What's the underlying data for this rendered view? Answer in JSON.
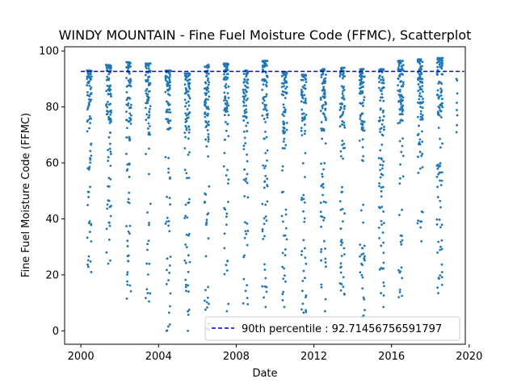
{
  "chart_data": {
    "type": "scatter",
    "title": "WINDY MOUNTAIN - Fine Fuel Moisture Code (FFMC), Scatterplot",
    "xlabel": "Date",
    "ylabel": "Fine Fuel Moisture Code (FFMC)",
    "xlim": [
      "1999-03-01",
      "2019-10-20"
    ],
    "ylim": [
      -4.8,
      101.5
    ],
    "xticks": [
      "2000",
      "2004",
      "2008",
      "2012",
      "2016",
      "2020"
    ],
    "yticks": [
      0,
      20,
      40,
      60,
      80,
      100
    ],
    "grid": false,
    "legend_position": "lower-right",
    "colors": {
      "points": "#1f77b4",
      "percentile_line": "#0000cc",
      "axes": "#000000"
    },
    "percentile_line": {
      "label": "90th percentile : 92.71456756591797",
      "y": 92.71456756591797,
      "x_range": [
        "2000-01-01",
        "2019-09-30"
      ],
      "style": "dashed"
    },
    "series": [
      {
        "seasons": [
          {
            "year": 2000,
            "start": "2000-04-25",
            "end": "2000-07-20",
            "min": 21.0,
            "max": 93.0,
            "n": 85
          },
          {
            "year": 2001,
            "start": "2001-04-20",
            "end": "2001-07-25",
            "min": 24.0,
            "max": 95.0,
            "n": 100
          },
          {
            "year": 2002,
            "start": "2002-05-05",
            "end": "2002-08-05",
            "min": 11.5,
            "max": 96.0,
            "n": 95
          },
          {
            "year": 2003,
            "start": "2003-05-01",
            "end": "2003-08-05",
            "min": 10.5,
            "max": 95.5,
            "n": 90
          },
          {
            "year": 2004,
            "start": "2004-05-10",
            "end": "2004-08-15",
            "min": 0.0,
            "max": 93.0,
            "n": 90
          },
          {
            "year": 2005,
            "start": "2005-05-05",
            "end": "2005-08-15",
            "min": 0.0,
            "max": 92.0,
            "n": 100
          },
          {
            "year": 2006,
            "start": "2006-05-15",
            "end": "2006-08-10",
            "min": 0.5,
            "max": 95.0,
            "n": 95
          },
          {
            "year": 2007,
            "start": "2007-05-10",
            "end": "2007-08-15",
            "min": 7.0,
            "max": 95.5,
            "n": 95
          },
          {
            "year": 2008,
            "start": "2008-05-10",
            "end": "2008-08-10",
            "min": 9.5,
            "max": 93.0,
            "n": 85
          },
          {
            "year": 2009,
            "start": "2009-05-05",
            "end": "2009-08-15",
            "min": 8.5,
            "max": 96.5,
            "n": 100
          },
          {
            "year": 2010,
            "start": "2010-05-10",
            "end": "2010-08-15",
            "min": 8.5,
            "max": 92.5,
            "n": 90
          },
          {
            "year": 2011,
            "start": "2011-05-10",
            "end": "2011-08-10",
            "min": 6.5,
            "max": 91.5,
            "n": 85
          },
          {
            "year": 2012,
            "start": "2012-05-10",
            "end": "2012-08-15",
            "min": 7.0,
            "max": 93.5,
            "n": 95
          },
          {
            "year": 2013,
            "start": "2013-05-05",
            "end": "2013-08-10",
            "min": 13.0,
            "max": 94.0,
            "n": 90
          },
          {
            "year": 2014,
            "start": "2014-05-10",
            "end": "2014-08-15",
            "min": 5.0,
            "max": 93.5,
            "n": 100
          },
          {
            "year": 2015,
            "start": "2015-05-10",
            "end": "2015-08-15",
            "min": 8.5,
            "max": 93.5,
            "n": 95
          },
          {
            "year": 2016,
            "start": "2016-05-01",
            "end": "2016-08-10",
            "min": 12.0,
            "max": 96.5,
            "n": 100
          },
          {
            "year": 2017,
            "start": "2017-05-05",
            "end": "2017-08-20",
            "min": 32.0,
            "max": 97.0,
            "n": 95
          },
          {
            "year": 2018,
            "start": "2018-05-01",
            "end": "2018-08-20",
            "min": 13.5,
            "max": 97.5,
            "n": 110
          },
          {
            "year": 2019,
            "start": "2019-05-05",
            "end": "2019-05-25",
            "min": 71.0,
            "max": 90.0,
            "n": 8
          }
        ]
      }
    ]
  }
}
